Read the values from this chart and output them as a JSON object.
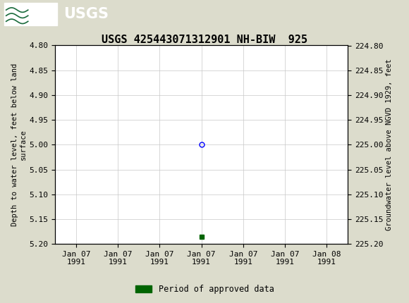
{
  "title": "USGS 425443071312901 NH-BIW  925",
  "ylabel_left": "Depth to water level, feet below land\nsurface",
  "ylabel_right": "Groundwater level above NGVD 1929, feet",
  "ylim_left": [
    4.8,
    5.2
  ],
  "ylim_right": [
    225.2,
    224.8
  ],
  "y_ticks_left": [
    4.8,
    4.85,
    4.9,
    4.95,
    5.0,
    5.05,
    5.1,
    5.15,
    5.2
  ],
  "y_ticks_right": [
    225.2,
    225.15,
    225.1,
    225.05,
    225.0,
    224.95,
    224.9,
    224.85,
    224.8
  ],
  "data_point_value": 5.0,
  "data_point_color": "blue",
  "green_square_value": 5.185,
  "green_square_color": "#006400",
  "header_color": "#1a6b3c",
  "background_color": "#dcdccc",
  "plot_bg_color": "#ffffff",
  "grid_color": "#c8c8c8",
  "legend_label": "Period of approved data",
  "legend_color": "#006400",
  "x_tick_labels": [
    "Jan 07\n1991",
    "Jan 07\n1991",
    "Jan 07\n1991",
    "Jan 07\n1991",
    "Jan 07\n1991",
    "Jan 07\n1991",
    "Jan 08\n1991"
  ],
  "font_name": "DejaVu Sans Mono",
  "title_fontsize": 11,
  "tick_fontsize": 8,
  "label_fontsize": 7.5
}
